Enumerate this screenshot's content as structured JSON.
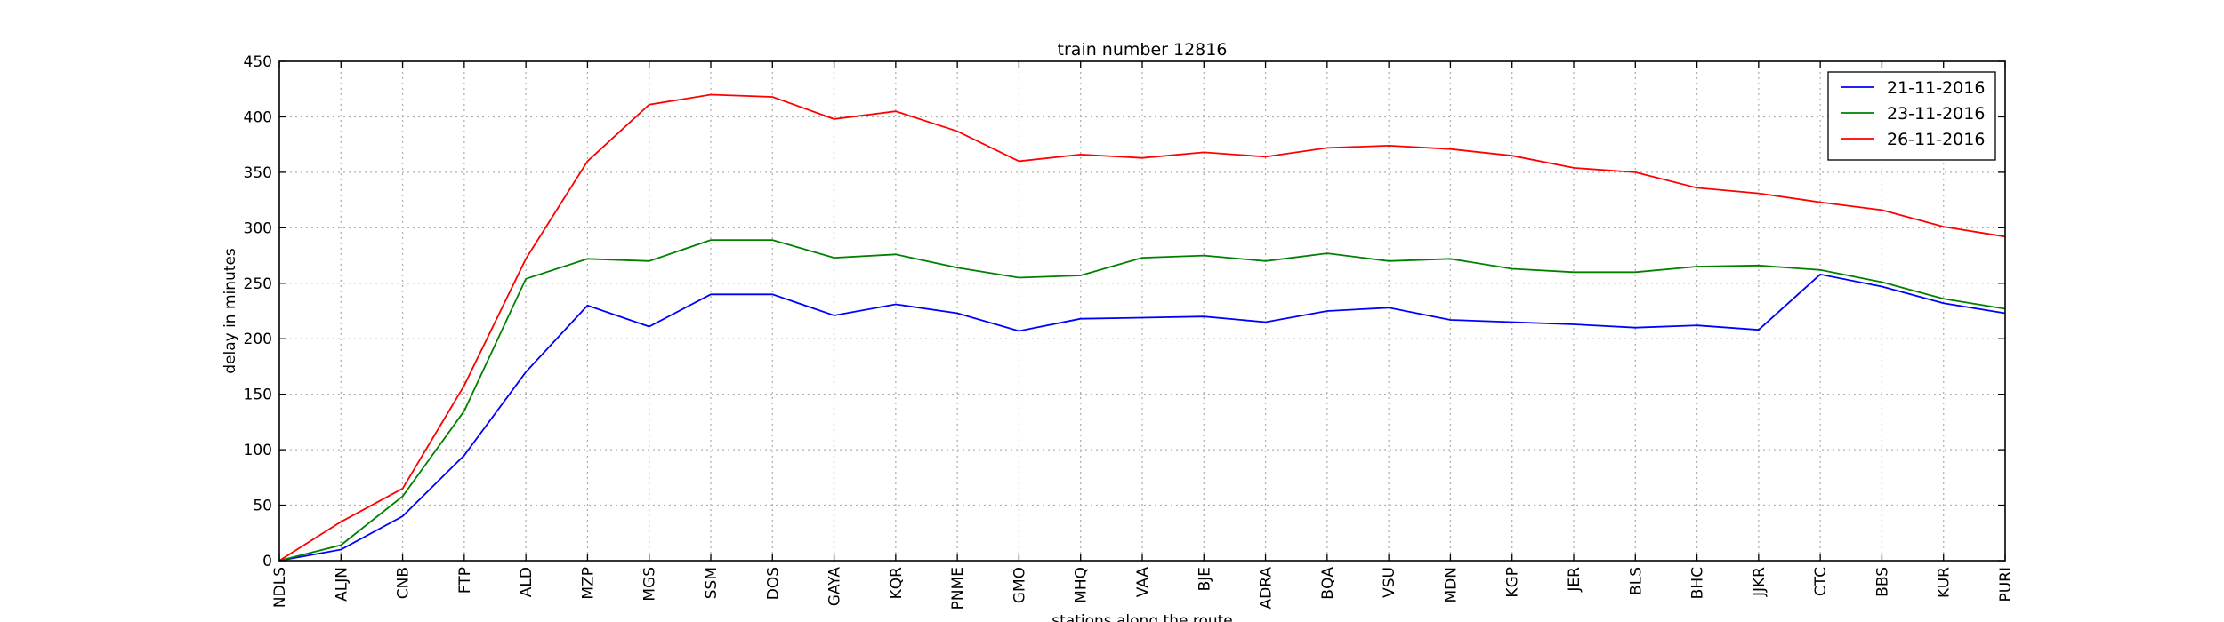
{
  "chart_data": {
    "type": "line",
    "title": "train number 12816",
    "xlabel": "stations along the route",
    "ylabel": "delay in minutes",
    "categories": [
      "NDLS",
      "ALJN",
      "CNB",
      "FTP",
      "ALD",
      "MZP",
      "MGS",
      "SSM",
      "DOS",
      "GAYA",
      "KQR",
      "PNME",
      "GMO",
      "MHQ",
      "VAA",
      "BJE",
      "ADRA",
      "BQA",
      "VSU",
      "MDN",
      "KGP",
      "JER",
      "BLS",
      "BHC",
      "JJKR",
      "CTC",
      "BBS",
      "KUR",
      "PURI"
    ],
    "ylim": [
      0,
      450
    ],
    "yticks": [
      0,
      50,
      100,
      150,
      200,
      250,
      300,
      350,
      400,
      450
    ],
    "grid": true,
    "legend_position": "top-right",
    "series": [
      {
        "name": "21-11-2016",
        "color": "#0000ff",
        "values": [
          0,
          10,
          40,
          95,
          170,
          230,
          211,
          240,
          240,
          221,
          231,
          223,
          207,
          218,
          219,
          220,
          215,
          225,
          228,
          217,
          215,
          213,
          210,
          212,
          208,
          258,
          247,
          232,
          223
        ]
      },
      {
        "name": "23-11-2016",
        "color": "#008000",
        "values": [
          0,
          14,
          58,
          135,
          254,
          272,
          270,
          289,
          289,
          273,
          276,
          264,
          255,
          257,
          273,
          275,
          270,
          277,
          270,
          272,
          263,
          260,
          260,
          265,
          266,
          262,
          251,
          236,
          227
        ]
      },
      {
        "name": "26-11-2016",
        "color": "#ff0000",
        "values": [
          0,
          35,
          65,
          158,
          272,
          360,
          411,
          420,
          418,
          398,
          405,
          387,
          360,
          366,
          363,
          368,
          364,
          372,
          374,
          371,
          365,
          354,
          350,
          336,
          331,
          323,
          316,
          301,
          292
        ]
      }
    ]
  }
}
